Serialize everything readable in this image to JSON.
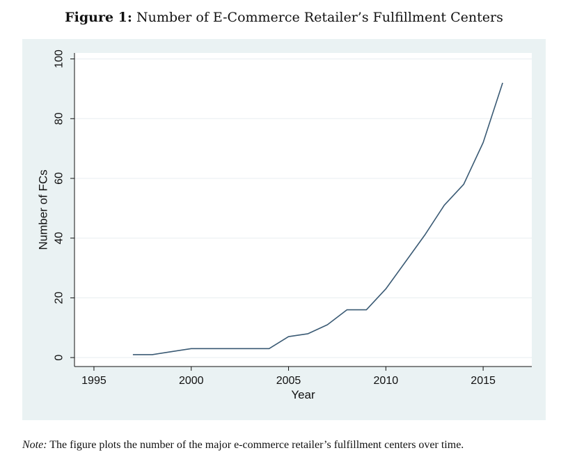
{
  "caption": {
    "label": "Figure 1:",
    "text": "Number of E-Commerce Retailer’s Fulfillment Centers"
  },
  "note": {
    "label": "Note:",
    "text": "The figure plots the number of the major e-commerce retailer’s fulfillment centers over time."
  },
  "colors": {
    "panel_bg": "#eaf2f3",
    "plot_bg": "#ffffff",
    "line": "#3a5a74",
    "axis": "#111111",
    "grid": "#e8eef0"
  },
  "chart_data": {
    "type": "line",
    "title": "",
    "xlabel": "Year",
    "ylabel": "Number of FCs",
    "xlim": [
      1994,
      2017.5
    ],
    "ylim": [
      -3,
      102
    ],
    "xticks": [
      1995,
      2000,
      2005,
      2010,
      2015
    ],
    "yticks": [
      0,
      20,
      40,
      60,
      80,
      100
    ],
    "grid": true,
    "series": [
      {
        "name": "Number of FCs",
        "x": [
          1997,
          1998,
          1999,
          2000,
          2001,
          2002,
          2003,
          2004,
          2005,
          2006,
          2007,
          2008,
          2009,
          2010,
          2011,
          2012,
          2013,
          2014,
          2015,
          2016
        ],
        "y": [
          1,
          1,
          2,
          3,
          3,
          3,
          3,
          3,
          7,
          8,
          11,
          16,
          16,
          23,
          32,
          41,
          51,
          58,
          72,
          92
        ]
      }
    ]
  }
}
